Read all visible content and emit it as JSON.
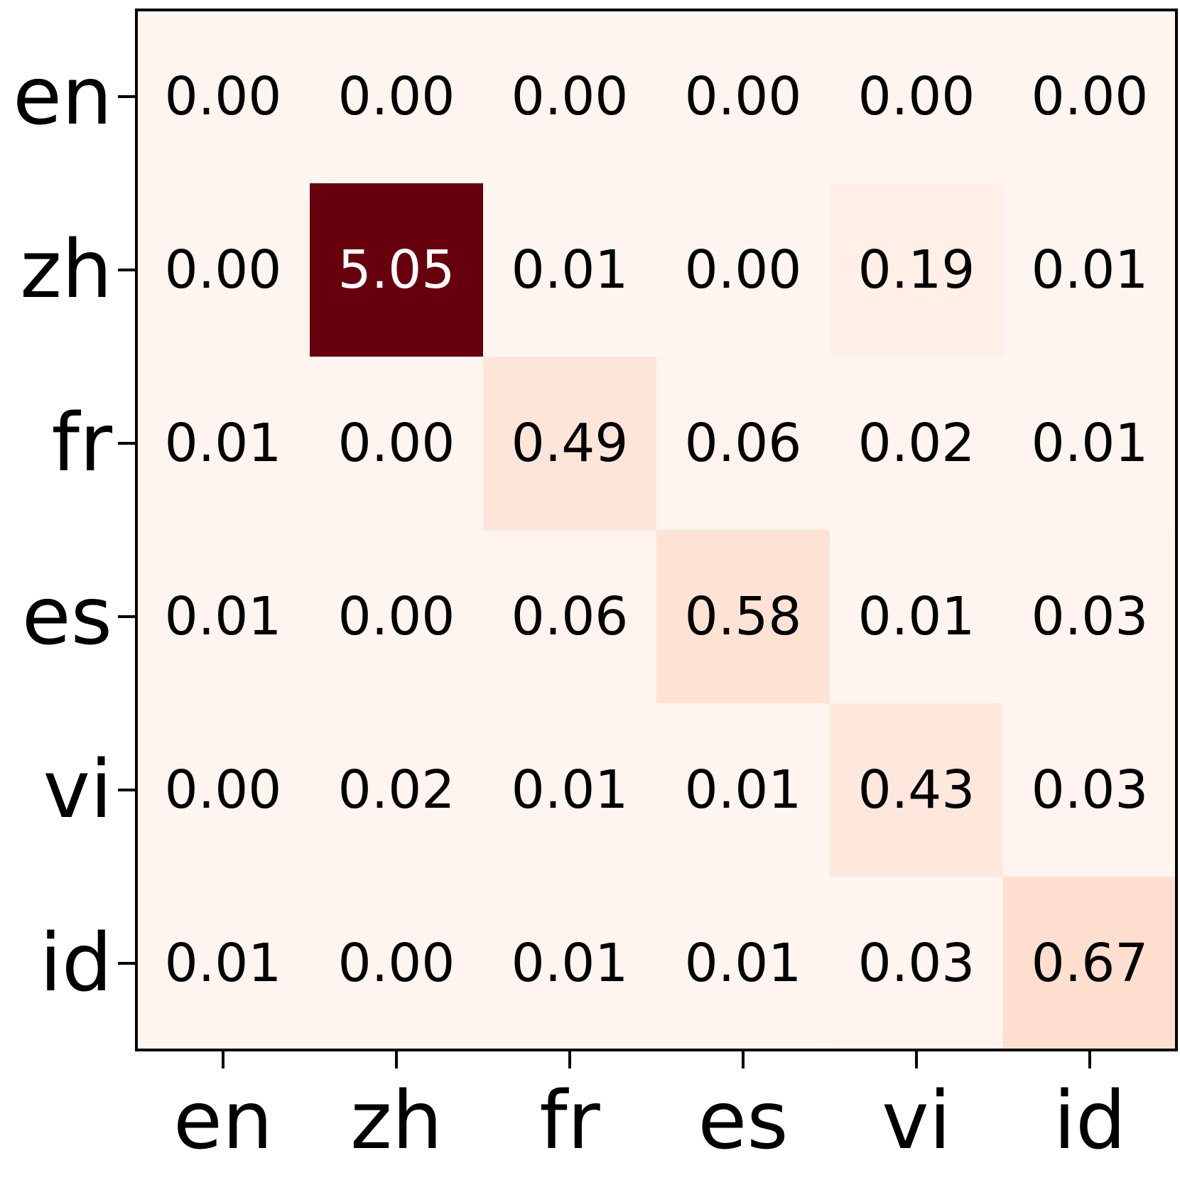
{
  "chart_data": {
    "type": "heatmap",
    "colormap": "Reds",
    "x_categories": [
      "en",
      "zh",
      "fr",
      "es",
      "vi",
      "id"
    ],
    "y_categories": [
      "en",
      "zh",
      "fr",
      "es",
      "vi",
      "id"
    ],
    "values": [
      [
        0.0,
        0.0,
        0.0,
        0.0,
        0.0,
        0.0
      ],
      [
        0.0,
        5.05,
        0.01,
        0.0,
        0.19,
        0.01
      ],
      [
        0.01,
        0.0,
        0.49,
        0.06,
        0.02,
        0.01
      ],
      [
        0.01,
        0.0,
        0.06,
        0.58,
        0.01,
        0.03
      ],
      [
        0.0,
        0.02,
        0.01,
        0.01,
        0.43,
        0.03
      ],
      [
        0.01,
        0.0,
        0.01,
        0.01,
        0.03,
        0.67
      ]
    ],
    "value_labels": [
      [
        "0.00",
        "0.00",
        "0.00",
        "0.00",
        "0.00",
        "0.00"
      ],
      [
        "0.00",
        "5.05",
        "0.01",
        "0.00",
        "0.19",
        "0.01"
      ],
      [
        "0.01",
        "0.00",
        "0.49",
        "0.06",
        "0.02",
        "0.01"
      ],
      [
        "0.01",
        "0.00",
        "0.06",
        "0.58",
        "0.01",
        "0.03"
      ],
      [
        "0.00",
        "0.02",
        "0.01",
        "0.01",
        "0.43",
        "0.03"
      ],
      [
        "0.01",
        "0.00",
        "0.01",
        "0.01",
        "0.03",
        "0.67"
      ]
    ]
  }
}
